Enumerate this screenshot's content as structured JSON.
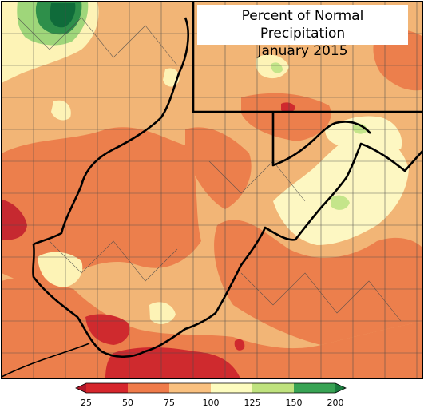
{
  "title": {
    "line1": "Percent of Normal Precipitation",
    "line2": "January 2015"
  },
  "legend": {
    "ticks": [
      "25",
      "50",
      "75",
      "100",
      "125",
      "150",
      "200"
    ],
    "bins": [
      {
        "range": "<25",
        "color": "#b2182b"
      },
      {
        "range": "25-50",
        "color": "#d6262c"
      },
      {
        "range": "50-75",
        "color": "#ef7b4a"
      },
      {
        "range": "75-100",
        "color": "#f9c07f"
      },
      {
        "range": "100-125",
        "color": "#fdfcbf"
      },
      {
        "range": "125-150",
        "color": "#bfe27e"
      },
      {
        "range": "150-200",
        "color": "#38a354"
      },
      {
        "range": ">200",
        "color": "#1a7a3d"
      }
    ]
  },
  "map": {
    "region": "West Virginia and surrounding counties",
    "base_color": "#f2b576",
    "boundary_color": "#000000",
    "county_color": "#4a4a4a"
  }
}
